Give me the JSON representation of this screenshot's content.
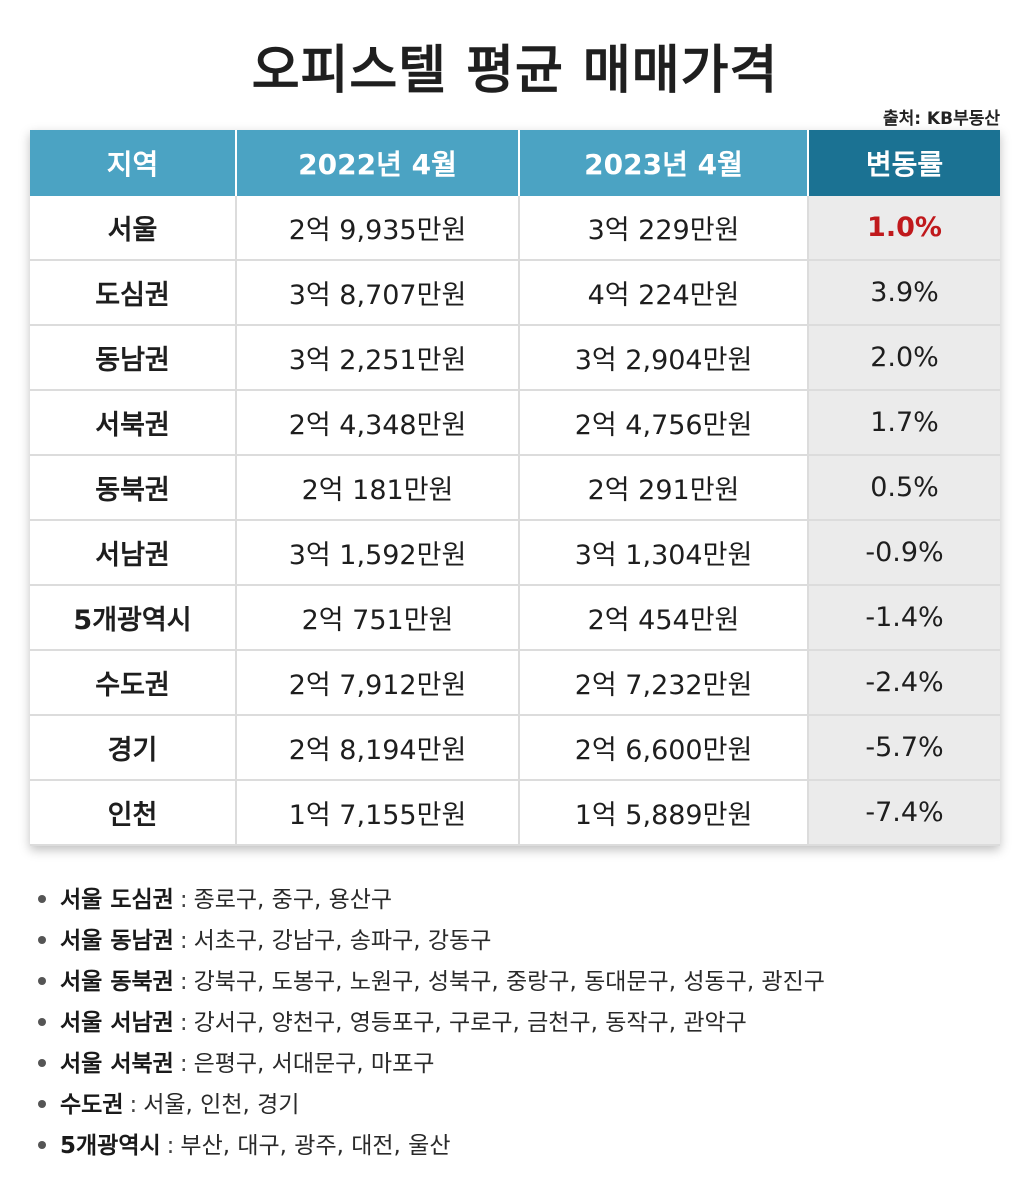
{
  "title": "오피스텔 평균 매매가격",
  "source": "출처: KB부동산",
  "table": {
    "headers": [
      "지역",
      "2022년 4월",
      "2023년 4월",
      "변동률"
    ],
    "rows": [
      {
        "region": "서울",
        "price_2022": "2억 9,935만원",
        "price_2023": "3억 229만원",
        "rate": "1.0%"
      },
      {
        "region": "도심권",
        "price_2022": "3억 8,707만원",
        "price_2023": "4억 224만원",
        "rate": "3.9%"
      },
      {
        "region": "동남권",
        "price_2022": "3억 2,251만원",
        "price_2023": "3억 2,904만원",
        "rate": "2.0%"
      },
      {
        "region": "서북권",
        "price_2022": "2억 4,348만원",
        "price_2023": "2억 4,756만원",
        "rate": "1.7%"
      },
      {
        "region": "동북권",
        "price_2022": "2억 181만원",
        "price_2023": "2억 291만원",
        "rate": "0.5%"
      },
      {
        "region": "서남권",
        "price_2022": "3억 1,592만원",
        "price_2023": "3억 1,304만원",
        "rate": "-0.9%"
      },
      {
        "region": "5개광역시",
        "price_2022": "2억 751만원",
        "price_2023": "2억 454만원",
        "rate": "-1.4%"
      },
      {
        "region": "수도권",
        "price_2022": "2억 7,912만원",
        "price_2023": "2억 7,232만원",
        "rate": "-2.4%"
      },
      {
        "region": "경기",
        "price_2022": "2억 8,194만원",
        "price_2023": "2억 6,600만원",
        "rate": "-5.7%"
      },
      {
        "region": "인천",
        "price_2022": "1억 7,155만원",
        "price_2023": "1억 5,889만원",
        "rate": "-7.4%"
      }
    ]
  },
  "notes": [
    {
      "key": "서울 도심권",
      "sep": ":",
      "value": "종로구, 중구, 용산구"
    },
    {
      "key": "서울 동남권",
      "sep": ":",
      "value": "서초구, 강남구, 송파구, 강동구"
    },
    {
      "key": "서울 동북권",
      "sep": ":",
      "value": "강북구, 도봉구, 노원구, 성북구, 중랑구, 동대문구, 성동구, 광진구"
    },
    {
      "key": "서울 서남권",
      "sep": ":",
      "value": "강서구, 양천구, 영등포구, 구로구, 금천구, 동작구, 관악구"
    },
    {
      "key": "서울 서북권",
      "sep": ":",
      "value": "은평구, 서대문구, 마포구"
    },
    {
      "key": "수도권",
      "sep": ":",
      "value": "서울, 인천, 경기"
    },
    {
      "key": "5개광역시",
      "sep": ":",
      "value": "부산, 대구, 광주, 대전, 울산"
    }
  ],
  "colors": {
    "header": "#4ba3c3",
    "header_rate": "#1b7293",
    "highlight": "#c0191c",
    "rate_column_bg": "#ebebeb"
  }
}
